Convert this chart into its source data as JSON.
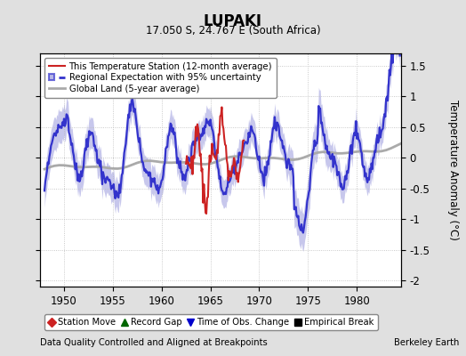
{
  "title": "LUPAKI",
  "subtitle": "17.050 S, 24.767 E (South Africa)",
  "ylabel": "Temperature Anomaly (°C)",
  "xlabel_bottom": "Data Quality Controlled and Aligned at Breakpoints",
  "xlabel_right": "Berkeley Earth",
  "ylim": [
    -2.1,
    1.7
  ],
  "yticks": [
    -2,
    -1.5,
    -1,
    -0.5,
    0,
    0.5,
    1,
    1.5
  ],
  "xlim": [
    1947.5,
    1984.5
  ],
  "xticks": [
    1950,
    1955,
    1960,
    1965,
    1970,
    1975,
    1980
  ],
  "bg_color": "#e0e0e0",
  "plot_bg_color": "#ffffff",
  "regional_color": "#3333cc",
  "regional_fill_color": "#9999dd",
  "station_color": "#cc2222",
  "global_color": "#aaaaaa",
  "legend_items": [
    {
      "label": "This Temperature Station (12-month average)",
      "color": "#cc2222",
      "lw": 1.5
    },
    {
      "label": "Regional Expectation with 95% uncertainty",
      "color": "#3333cc",
      "lw": 2.0
    },
    {
      "label": "Global Land (5-year average)",
      "color": "#aaaaaa",
      "lw": 2.0
    }
  ],
  "marker_items": [
    {
      "label": "Station Move",
      "color": "#cc2222",
      "marker": "D"
    },
    {
      "label": "Record Gap",
      "color": "#006600",
      "marker": "^"
    },
    {
      "label": "Time of Obs. Change",
      "color": "#0000cc",
      "marker": "v"
    },
    {
      "label": "Empirical Break",
      "color": "#000000",
      "marker": "s"
    }
  ]
}
